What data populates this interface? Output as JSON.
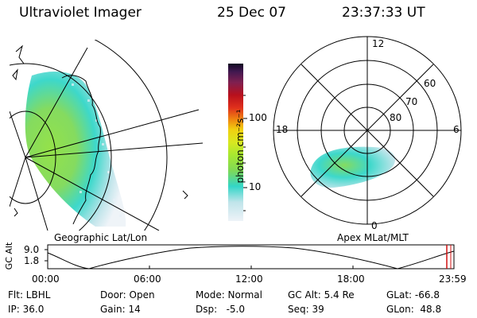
{
  "header": {
    "instrument": "Ultraviolet Imager",
    "date": "25 Dec 07",
    "time": "23:37:33 UT"
  },
  "colorbar": {
    "unit_label": "photon cm⁻²s⁻¹",
    "ticks": [
      "100",
      "10"
    ],
    "colors": [
      "#e8f0f8",
      "#bfe4ea",
      "#33d6c8",
      "#7ed957",
      "#a8e830",
      "#d8e820",
      "#f0d010",
      "#f08c10",
      "#e0301c",
      "#b8101c",
      "#802050",
      "#401850",
      "#100820"
    ]
  },
  "geographic_panel": {
    "label": "Geographic Lat/Lon"
  },
  "polar_panel": {
    "label": "Apex MLat/MLT",
    "mlt_labels": {
      "top": "12",
      "left": "18",
      "right": "6",
      "bottom": "0"
    },
    "lat_labels": [
      "60",
      "70",
      "80"
    ]
  },
  "timeline": {
    "y_label": "GC Alt",
    "y_ticks": [
      "9.0",
      "1.8"
    ],
    "x_ticks": [
      "00:00",
      "06:00",
      "12:00",
      "18:00",
      "23:59"
    ]
  },
  "status": {
    "row1": [
      {
        "key": "flt",
        "text": "Flt: LBHL"
      },
      {
        "key": "door",
        "text": "Door: Open"
      },
      {
        "key": "mode",
        "text": "Mode: Normal"
      },
      {
        "key": "gcalt",
        "text": "GC Alt: 5.4 Re"
      },
      {
        "key": "glat",
        "text": "GLat: -66.8"
      }
    ],
    "row2": [
      {
        "key": "ip",
        "text": "IP: 36.0"
      },
      {
        "key": "gain",
        "text": "Gain: 14"
      },
      {
        "key": "dsp",
        "text": "Dsp:   -5.0"
      },
      {
        "key": "seq",
        "text": "Seq: 39"
      },
      {
        "key": "glon",
        "text": "GLon:  48.8"
      }
    ]
  }
}
